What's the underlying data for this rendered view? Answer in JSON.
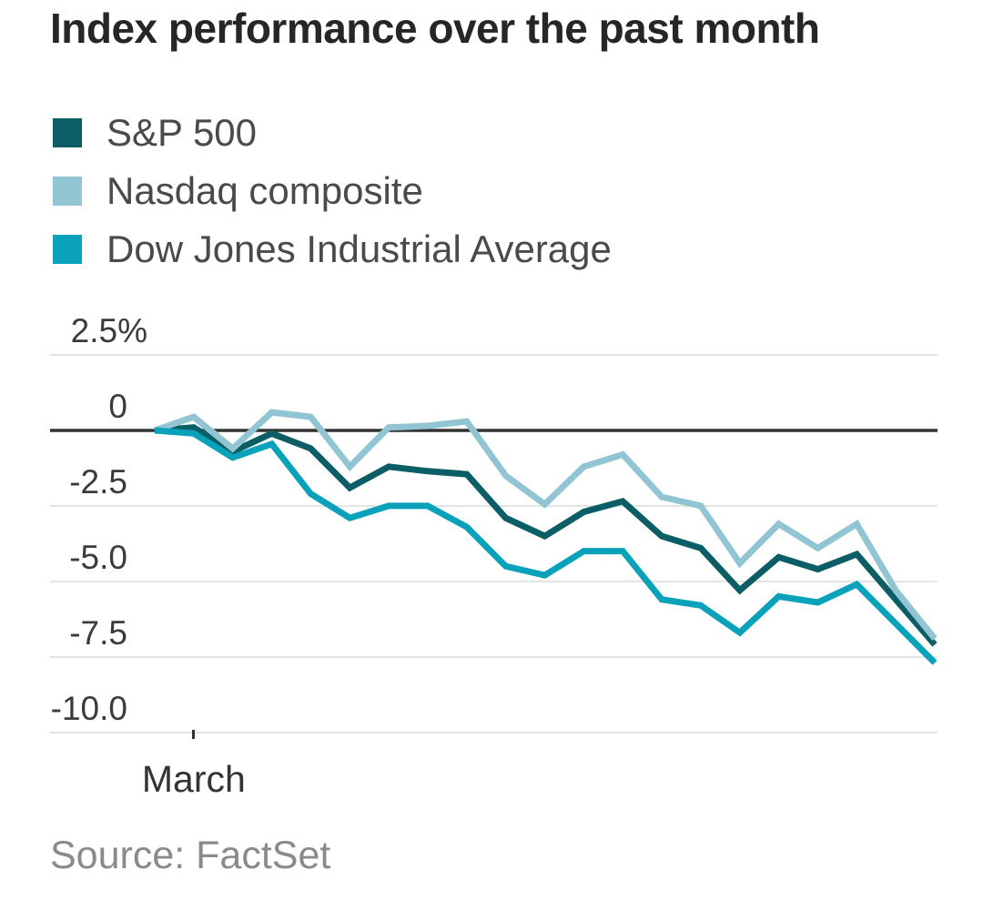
{
  "chart_data": {
    "type": "line",
    "title": "Index performance over the past month",
    "source": "Source: FactSet",
    "ylim": [
      -10.0,
      2.5
    ],
    "grid": "horizontal",
    "legend_position": "top-left",
    "zero_line_color": "#333333",
    "gridline_color": "#e4e4e4",
    "yticks": [
      {
        "label": "2.5%",
        "value": 2.5
      },
      {
        "label": "0",
        "value": 0
      },
      {
        "label": "-2.5",
        "value": -2.5
      },
      {
        "label": "-5.0",
        "value": -5.0
      },
      {
        "label": "-7.5",
        "value": -7.5
      },
      {
        "label": "-10.0",
        "value": -10.0
      }
    ],
    "xtick": {
      "label": "March",
      "index": 1
    },
    "x": "trading days over the past month (21 sessions)",
    "unit": "% change",
    "series": [
      {
        "name": "S&P 500",
        "color": "#0c5e66",
        "values": [
          0,
          0.1,
          -0.7,
          -0.1,
          -0.6,
          -1.9,
          -1.2,
          -1.35,
          -1.45,
          -2.9,
          -3.5,
          -2.7,
          -2.35,
          -3.5,
          -3.9,
          -5.3,
          -4.2,
          -4.6,
          -4.1,
          -5.6,
          -7.1
        ]
      },
      {
        "name": "Nasdaq composite",
        "color": "#92c5d3",
        "values": [
          0,
          0.45,
          -0.6,
          0.6,
          0.45,
          -1.2,
          0.1,
          0.15,
          0.3,
          -1.5,
          -2.45,
          -1.2,
          -0.8,
          -2.2,
          -2.5,
          -4.4,
          -3.1,
          -3.9,
          -3.1,
          -5.3,
          -6.9
        ]
      },
      {
        "name": "Dow Jones Industrial Average",
        "color": "#09a2ba",
        "values": [
          0,
          -0.1,
          -0.9,
          -0.45,
          -2.1,
          -2.9,
          -2.5,
          -2.5,
          -3.2,
          -4.5,
          -4.8,
          -4.0,
          -4.0,
          -5.6,
          -5.8,
          -6.7,
          -5.5,
          -5.7,
          -5.1,
          -6.4,
          -7.7
        ]
      }
    ]
  }
}
